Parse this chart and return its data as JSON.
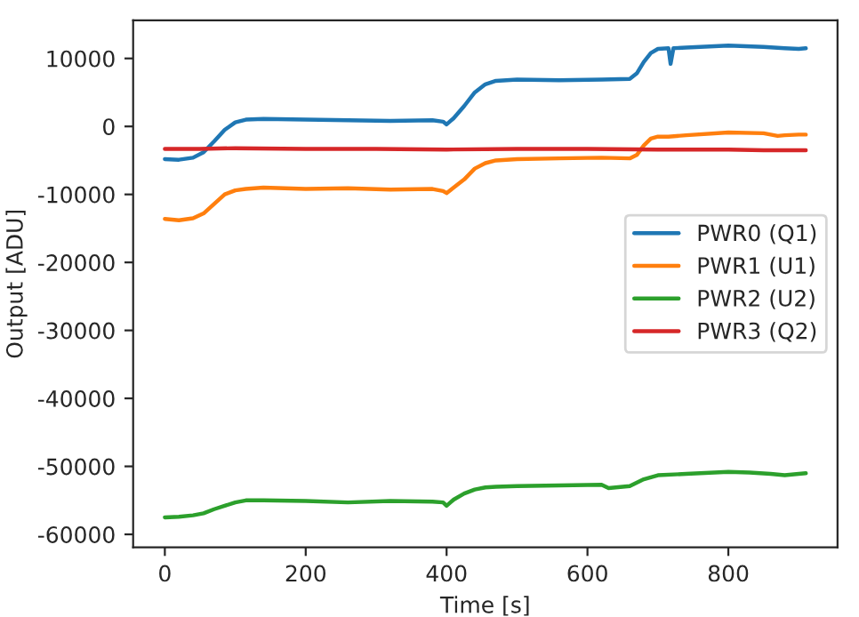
{
  "chart_data": {
    "type": "line",
    "xlabel": "Time [s]",
    "ylabel": "Output [ADU]",
    "xlim": [
      -45,
      955
    ],
    "ylim": [
      -61900,
      15600
    ],
    "xticks": [
      0,
      200,
      400,
      600,
      800
    ],
    "yticks": [
      -60000,
      -50000,
      -40000,
      -30000,
      -20000,
      -10000,
      0,
      10000
    ],
    "grid": false,
    "legend": "right",
    "marker": "none",
    "line_style": "solid",
    "series": [
      {
        "name": "PWR0 (Q1)",
        "color": "#1f77b4",
        "x": [
          0,
          20,
          40,
          55,
          70,
          85,
          100,
          115,
          140,
          200,
          260,
          320,
          380,
          395,
          400,
          410,
          425,
          440,
          455,
          470,
          500,
          560,
          620,
          660,
          670,
          680,
          690,
          700,
          715,
          718,
          722,
          740,
          800,
          850,
          880,
          900,
          910
        ],
        "values": [
          -4800,
          -4900,
          -4600,
          -3800,
          -2200,
          -500,
          600,
          1000,
          1100,
          1000,
          900,
          800,
          900,
          700,
          300,
          1200,
          3000,
          5000,
          6200,
          6700,
          6900,
          6800,
          6900,
          7000,
          7800,
          9500,
          10800,
          11400,
          11500,
          9200,
          11500,
          11600,
          11900,
          11700,
          11500,
          11400,
          11500
        ]
      },
      {
        "name": "PWR1 (U1)",
        "color": "#ff7f0e",
        "x": [
          0,
          20,
          40,
          55,
          70,
          85,
          100,
          115,
          140,
          200,
          260,
          320,
          380,
          395,
          400,
          410,
          425,
          440,
          455,
          470,
          500,
          560,
          620,
          660,
          670,
          680,
          690,
          700,
          715,
          740,
          800,
          850,
          870,
          880,
          900,
          910
        ],
        "values": [
          -13600,
          -13800,
          -13500,
          -12800,
          -11400,
          -10000,
          -9400,
          -9200,
          -9000,
          -9200,
          -9100,
          -9300,
          -9200,
          -9500,
          -9800,
          -9000,
          -7800,
          -6200,
          -5400,
          -5000,
          -4800,
          -4700,
          -4600,
          -4700,
          -4200,
          -2800,
          -1800,
          -1500,
          -1500,
          -1300,
          -900,
          -1000,
          -1400,
          -1300,
          -1200,
          -1200
        ]
      },
      {
        "name": "PWR2 (U2)",
        "color": "#2ca02c",
        "x": [
          0,
          20,
          40,
          55,
          70,
          85,
          100,
          115,
          140,
          200,
          260,
          320,
          380,
          395,
          400,
          410,
          425,
          440,
          455,
          470,
          500,
          560,
          620,
          630,
          660,
          680,
          700,
          740,
          800,
          830,
          860,
          880,
          900,
          910
        ],
        "values": [
          -57500,
          -57400,
          -57200,
          -56900,
          -56300,
          -55800,
          -55300,
          -55000,
          -55000,
          -55100,
          -55300,
          -55100,
          -55200,
          -55300,
          -55800,
          -54900,
          -54000,
          -53400,
          -53100,
          -53000,
          -52900,
          -52800,
          -52700,
          -53200,
          -52900,
          -51900,
          -51300,
          -51100,
          -50800,
          -50900,
          -51100,
          -51300,
          -51100,
          -51000
        ]
      },
      {
        "name": "PWR3 (Q2)",
        "color": "#d62728",
        "x": [
          0,
          50,
          100,
          200,
          300,
          400,
          500,
          600,
          700,
          800,
          850,
          900,
          910
        ],
        "values": [
          -3300,
          -3300,
          -3200,
          -3300,
          -3300,
          -3400,
          -3300,
          -3300,
          -3400,
          -3400,
          -3500,
          -3500,
          -3500
        ]
      }
    ]
  }
}
